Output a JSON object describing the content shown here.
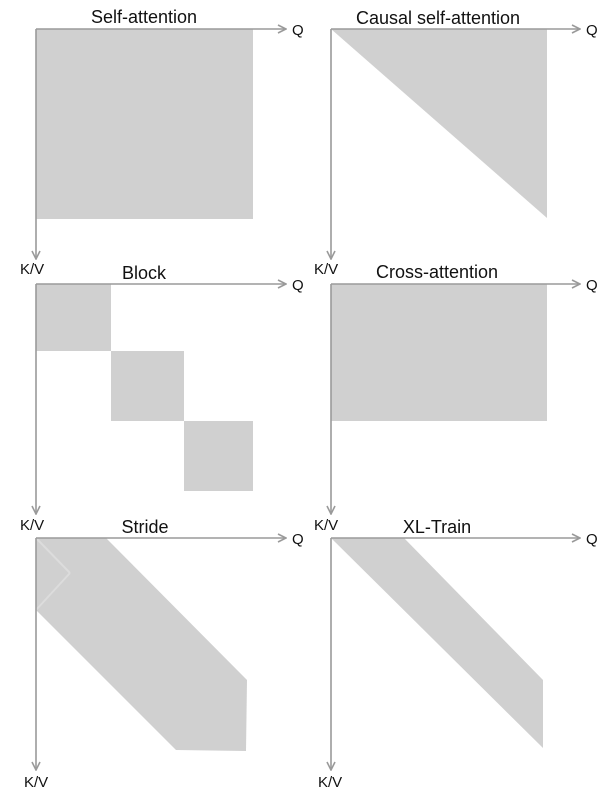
{
  "colors": {
    "fill": "#d0d0d0",
    "axis": "#9a9a9a",
    "text": "#111111"
  },
  "panels": [
    {
      "title": "Self-attention",
      "x_axis_label": "Q",
      "y_axis_label": "K/V"
    },
    {
      "title": "Causal self-attention",
      "x_axis_label": "Q",
      "y_axis_label": "K/V"
    },
    {
      "title": "Block",
      "x_axis_label": "Q",
      "y_axis_label": "K/V"
    },
    {
      "title": "Cross-attention",
      "x_axis_label": "Q",
      "y_axis_label": "K/V"
    },
    {
      "title": "Stride",
      "x_axis_label": "Q",
      "y_axis_label": "K/V"
    },
    {
      "title": "XL-Train",
      "x_axis_label": "Q",
      "y_axis_label": "K/V"
    }
  ]
}
